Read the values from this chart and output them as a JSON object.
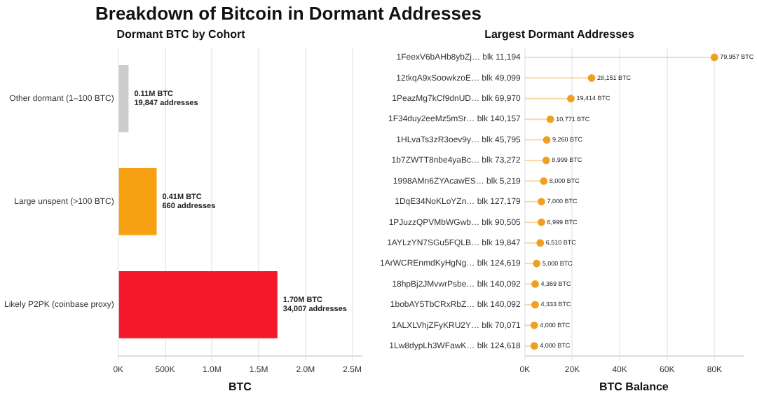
{
  "chart_data": [
    {
      "type": "bar",
      "orientation": "horizontal",
      "title": "Breakdown of Bitcoin in Dormant Addresses",
      "subtitle": "Dormant BTC by Cohort",
      "xlabel": "BTC",
      "categories": [
        "Other dormant (1–100 BTC)",
        "Large unspent (>100 BTC)",
        "Likely P2PK (coinbase proxy)"
      ],
      "values": [
        110000,
        410000,
        1700000
      ],
      "colors": [
        "#cccccc",
        "#f7a012",
        "#f5192b"
      ],
      "value_labels": [
        "0.11M BTC\n19,847 addresses",
        "0.41M BTC\n660 addresses",
        "1.70M BTC\n34,007 addresses"
      ],
      "xlim": [
        0,
        2600000
      ],
      "xticks": [
        {
          "value": 0,
          "label": "0K"
        },
        {
          "value": 500000,
          "label": "500K"
        },
        {
          "value": 1000000,
          "label": "1.0M"
        },
        {
          "value": 1500000,
          "label": "1.5M"
        },
        {
          "value": 2000000,
          "label": "2.0M"
        },
        {
          "value": 2500000,
          "label": "2.5M"
        }
      ],
      "grid": "x",
      "legend": false
    },
    {
      "type": "lollipop",
      "orientation": "horizontal",
      "title": "Largest Dormant Addresses",
      "xlabel": "BTC Balance",
      "color": "#f0a020",
      "categories": [
        "1FeexV6bAHb8ybZj… blk 11,194",
        "12tkqA9xSoowkzoE… blk 49,099",
        "1PeazMg7kCf9dnUD… blk 69,970",
        "1F34duy2eeMz5mSr… blk 140,157",
        "1HLvaTs3zR3oev9y… blk 45,795",
        "1b7ZWTT8nbe4yaBc… blk 73,272",
        "1998AMn6ZYAcawES… blk 5,219",
        "1DqE34NoKLoYZn… blk 127,179",
        "1PJuzzQPVMbWGwb… blk 90,505",
        "1AYLzYN7SGu5FQLB… blk 19,847",
        "1ArWCREnmdKyHgNg… blk 124,619",
        "18hpBj2JMvwrPsbe… blk 140,092",
        "1bobAY5TbCRxRbZ… blk 140,092",
        "1ALXLVhjZFyKRU2Y… blk 70,071",
        "1Lw8dypLh3WFawK… blk 124,618"
      ],
      "values": [
        79957,
        28151,
        19414,
        10771,
        9260,
        8999,
        8000,
        7000,
        6999,
        6510,
        5000,
        4369,
        4333,
        4000,
        4000
      ],
      "value_labels": [
        "79,957 BTC",
        "28,151 BTC",
        "19,414 BTC",
        "10,771 BTC",
        "9,260 BTC",
        "8,999 BTC",
        "8,000 BTC",
        "7,000 BTC",
        "6,999 BTC",
        "6,510 BTC",
        "5,000 BTC",
        "4,369 BTC",
        "4,333 BTC",
        "4,000 BTC",
        "4,000 BTC"
      ],
      "xlim": [
        0,
        92000
      ],
      "xticks": [
        {
          "value": 0,
          "label": "0K"
        },
        {
          "value": 20000,
          "label": "20K"
        },
        {
          "value": 40000,
          "label": "40K"
        },
        {
          "value": 60000,
          "label": "60K"
        },
        {
          "value": 80000,
          "label": "80K"
        }
      ],
      "grid": "x",
      "legend": false,
      "marker": "circle"
    }
  ]
}
